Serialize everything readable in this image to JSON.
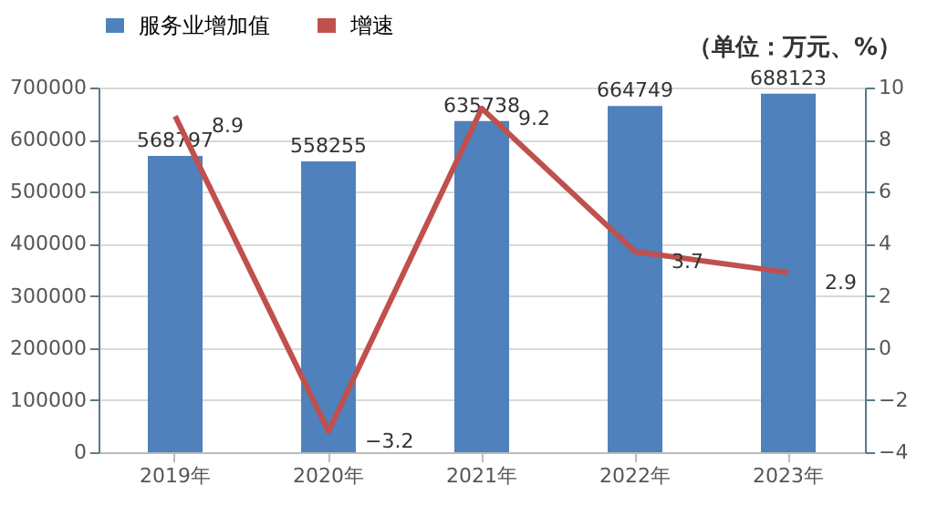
{
  "chart_data": {
    "type": "bar",
    "categories": [
      "2019年",
      "2020年",
      "2021年",
      "2022年",
      "2023年"
    ],
    "series": [
      {
        "name": "服务业增加值",
        "color": "#4f81bd",
        "values": [
          568797,
          558255,
          635738,
          664749,
          688123
        ]
      },
      {
        "name": "增速",
        "type": "line",
        "axis": "y2",
        "color": "#c0504d",
        "values": [
          8.9,
          -3.2,
          9.2,
          3.7,
          2.9
        ]
      }
    ],
    "ylim": [
      0,
      700000
    ],
    "yticks": [
      0,
      100000,
      200000,
      300000,
      400000,
      500000,
      600000,
      700000
    ],
    "y2lim": [
      -4,
      10
    ],
    "y2ticks": [
      -4,
      -2,
      0,
      2,
      4,
      6,
      8,
      10
    ],
    "annotations": [
      "（单位：万元、%）"
    ],
    "data_labels": true,
    "grid": "y",
    "legend": "top",
    "marker": "none",
    "line_style": "solid"
  }
}
